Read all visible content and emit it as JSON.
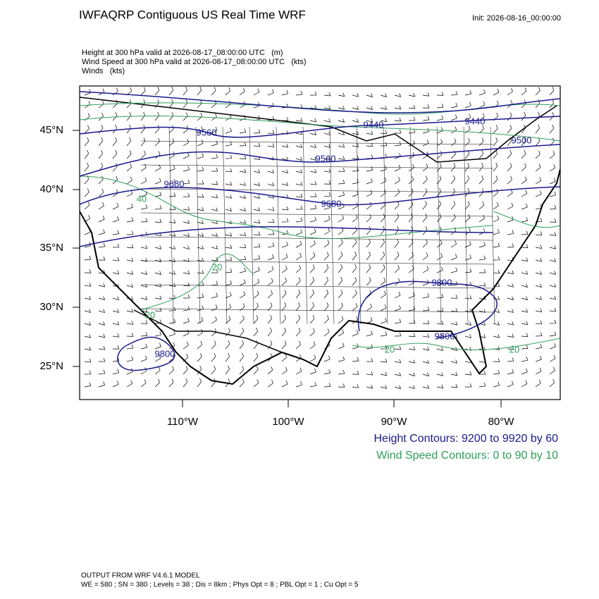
{
  "header": {
    "title": "IWFAQRP Contiguous US Real Time WRF",
    "init": "Init: 2026-08-16_00:00:00"
  },
  "fields": [
    "Height at 300 hPa valid at 2026-08-17_08:00:00 UTC   (m)",
    "Wind Speed at 300 hPa valid at 2026-08-17_08:00:00 UTC   (kts)",
    "Winds   (kts)"
  ],
  "lat_labels": [
    "45°N",
    "40°N",
    "35°N",
    "30°N",
    "25°N"
  ],
  "lon_labels": [
    "110°W",
    "100°W",
    "90°W",
    "80°W"
  ],
  "height_labels": [
    "9560",
    "9440",
    "9440",
    "9500",
    "9560",
    "9680",
    "9680",
    "9800",
    "9800",
    "9800"
  ],
  "speed_labels": [
    "40",
    "20",
    "20",
    "20",
    "20"
  ],
  "legend": [
    "Height Contours: 9200 to 9920 by 60",
    "Wind Speed Contours: 0 to 90 by 10"
  ],
  "footer": [
    "OUTPUT FROM WRF V4.6.1 MODEL",
    "WE = 580 ; SN = 380 ; Levels = 38 ; Dis = 8km ; Phys Opt = 8 ; PBL Opt = 1 ; Cu Opt = 5"
  ]
}
